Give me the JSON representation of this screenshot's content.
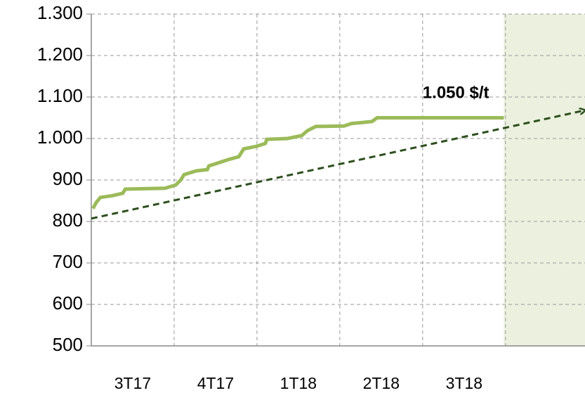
{
  "chart_data": {
    "type": "line",
    "categories": [
      "3T17",
      "4T17",
      "1T18",
      "2T18",
      "3T18"
    ],
    "xlim": [
      0,
      5.96
    ],
    "ylim": [
      500,
      1300
    ],
    "yticks": [
      500,
      600,
      700,
      800,
      900,
      {
        "value": 1000,
        "label": "1.000"
      },
      {
        "value": 1100,
        "label": "1.100"
      },
      {
        "value": 1200,
        "label": "1.200"
      },
      {
        "value": 1300,
        "label": "1.300"
      }
    ],
    "grid": true,
    "shaded_from": 4.98,
    "shade_color": "#ebf1de",
    "series": [
      {
        "color": "#9bbb59",
        "x": [
          0.02,
          0.06,
          0.11,
          0.25,
          0.38,
          0.41,
          0.89,
          1.02,
          1.08,
          1.12,
          1.27,
          1.4,
          1.42,
          1.53,
          1.65,
          1.78,
          1.84,
          1.99,
          2.1,
          2.12,
          2.37,
          2.54,
          2.61,
          2.71,
          3.05,
          3.14,
          3.39,
          3.45,
          4.98
        ],
        "values": [
          831,
          846,
          858,
          862,
          868,
          878,
          880,
          888,
          900,
          913,
          922,
          925,
          934,
          941,
          949,
          956,
          975,
          981,
          988,
          998,
          1000,
          1007,
          1019,
          1029,
          1030,
          1036,
          1041,
          1050,
          1050
        ]
      },
      {
        "color": "#2d4f1e",
        "dashed": true,
        "arrow": true,
        "x": [
          0,
          5.96
        ],
        "values": [
          807,
          1068
        ]
      }
    ],
    "annotation": {
      "text": "1.050 $/t",
      "x": 4.0,
      "y": 1108,
      "color": "#9bbb59"
    }
  }
}
